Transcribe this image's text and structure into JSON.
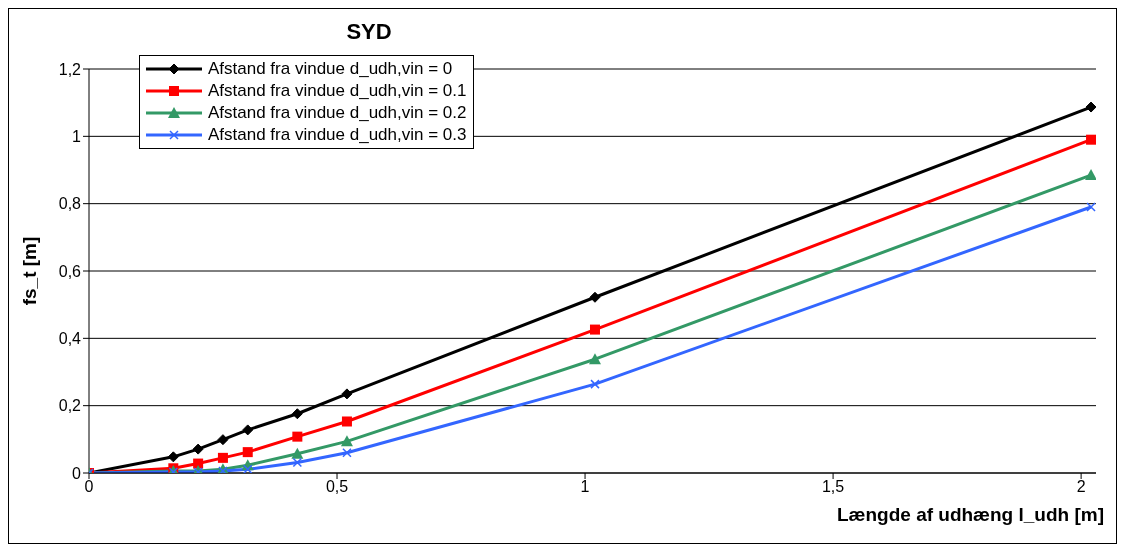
{
  "chart_data": {
    "type": "line",
    "title": "SYD",
    "xlabel": "Længde af udhæng l_udh [m]",
    "ylabel": "fs_t [m]",
    "x": [
      0,
      0.17,
      0.22,
      0.27,
      0.32,
      0.42,
      0.52,
      1.02,
      2.02
    ],
    "series": [
      {
        "name": "Afstand fra vindue d_udh,vin = 0",
        "color": "#000000",
        "marker": "diamond",
        "values": [
          0,
          0.048,
          0.071,
          0.099,
          0.128,
          0.176,
          0.235,
          0.522,
          1.087
        ]
      },
      {
        "name": "Afstand fra vindue d_udh,vin = 0.1",
        "color": "#ff0000",
        "marker": "square",
        "values": [
          0,
          0.014,
          0.028,
          0.045,
          0.062,
          0.108,
          0.153,
          0.426,
          0.99
        ]
      },
      {
        "name": "Afstand fra vindue d_udh,vin = 0.2",
        "color": "#339966",
        "marker": "triangle",
        "values": [
          0,
          0.006,
          0.006,
          0.011,
          0.023,
          0.057,
          0.094,
          0.338,
          0.885
        ]
      },
      {
        "name": "Afstand fra vindue d_udh,vin = 0.3",
        "color": "#3366ff",
        "marker": "cross",
        "values": [
          0,
          0.003,
          0.003,
          0.006,
          0.011,
          0.031,
          0.06,
          0.264,
          0.79
        ]
      }
    ],
    "xlim": [
      0,
      2.03
    ],
    "xticks": [
      0,
      {
        "value": 0.5,
        "label": "0,5"
      },
      1,
      {
        "value": 1.5,
        "label": "1,5"
      },
      2
    ],
    "ylim": [
      0,
      1.2
    ],
    "yticks": [
      0,
      {
        "value": 0.2,
        "label": "0,2"
      },
      {
        "value": 0.4,
        "label": "0,4"
      },
      {
        "value": 0.6,
        "label": "0,6"
      },
      {
        "value": 0.8,
        "label": "0,8"
      },
      1,
      {
        "value": 1.2,
        "label": "1,2"
      }
    ],
    "grid": "y",
    "legend": "top left",
    "line_style": "solid"
  }
}
